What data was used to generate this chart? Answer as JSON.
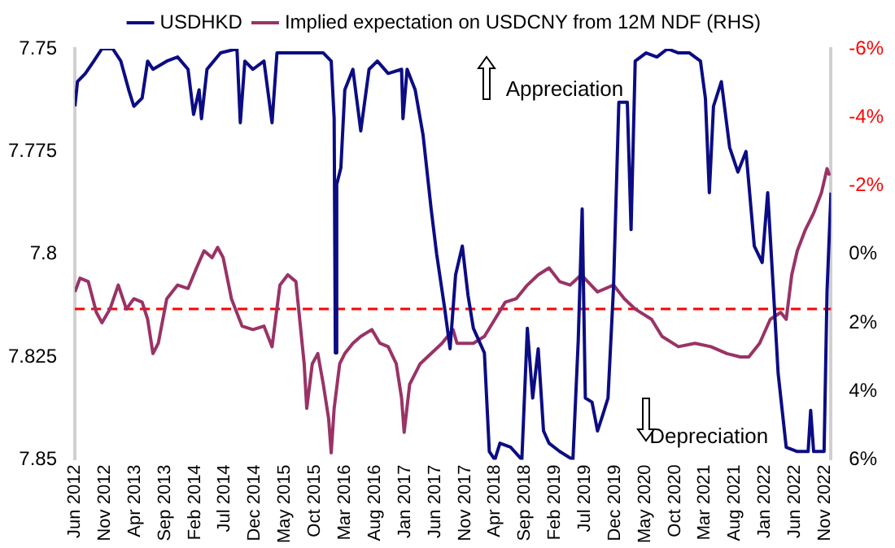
{
  "chart_data": {
    "type": "line",
    "legend": "top",
    "grid": false,
    "marker": "none",
    "line_style": "solid",
    "ylim": [
      7.85,
      7.75
    ],
    "yticks": [
      7.75,
      7.775,
      7.8,
      7.825,
      7.85
    ],
    "y2lim": [
      6,
      -6
    ],
    "y2ticks": [
      {
        "value": -6,
        "label": "-6%"
      },
      {
        "value": -4,
        "label": "-4%"
      },
      {
        "value": -2,
        "label": "-2%"
      },
      {
        "value": 0,
        "label": "0%"
      },
      {
        "value": 2,
        "label": "2%"
      },
      {
        "value": 4,
        "label": "4%"
      },
      {
        "value": 6,
        "label": "6%"
      }
    ],
    "xlim": [
      "2012-06-01",
      "2022-12-01"
    ],
    "xticks": [
      {
        "value": "2012-06-01",
        "label": "Jun 2012"
      },
      {
        "value": "2012-11-01",
        "label": "Nov 2012"
      },
      {
        "value": "2013-04-01",
        "label": "Apr 2013"
      },
      {
        "value": "2013-09-01",
        "label": "Sep 2013"
      },
      {
        "value": "2014-02-01",
        "label": "Feb 2014"
      },
      {
        "value": "2014-07-01",
        "label": "Jul 2014"
      },
      {
        "value": "2014-12-01",
        "label": "Dec 2014"
      },
      {
        "value": "2015-05-01",
        "label": "May 2015"
      },
      {
        "value": "2015-10-01",
        "label": "Oct 2015"
      },
      {
        "value": "2016-03-01",
        "label": "Mar 2016"
      },
      {
        "value": "2016-08-01",
        "label": "Aug 2016"
      },
      {
        "value": "2017-01-01",
        "label": "Jan 2017"
      },
      {
        "value": "2017-06-01",
        "label": "Jun 2017"
      },
      {
        "value": "2017-11-01",
        "label": "Nov 2017"
      },
      {
        "value": "2018-04-01",
        "label": "Apr 2018"
      },
      {
        "value": "2018-09-01",
        "label": "Sep 2018"
      },
      {
        "value": "2019-02-01",
        "label": "Feb 2019"
      },
      {
        "value": "2019-07-01",
        "label": "Jul 2019"
      },
      {
        "value": "2019-12-01",
        "label": "Dec 2019"
      },
      {
        "value": "2020-05-01",
        "label": "May 2020"
      },
      {
        "value": "2020-10-01",
        "label": "Oct 2020"
      },
      {
        "value": "2021-03-01",
        "label": "Mar 2021"
      },
      {
        "value": "2021-08-01",
        "label": "Aug 2021"
      },
      {
        "value": "2022-01-01",
        "label": "Jan 2022"
      },
      {
        "value": "2022-06-01",
        "label": "Jun 2022"
      },
      {
        "value": "2022-11-01",
        "label": "Nov 2022"
      }
    ],
    "ref_lines": [
      {
        "axis": "y2",
        "value": 1.6,
        "color": "#ff0000",
        "line_style": "dashed"
      }
    ],
    "annotations": [
      "Appreciation",
      "Depreciation"
    ],
    "series": [
      {
        "name": "USDHKD",
        "color": "#0c0c84",
        "x": [
          "2012-06-01",
          "2012-06-14",
          "2012-07-24",
          "2012-09-05",
          "2012-10-16",
          "2012-12-10",
          "2013-01-20",
          "2013-03-01",
          "2013-03-27",
          "2013-05-08",
          "2013-06-05",
          "2013-07-02",
          "2013-09-10",
          "2013-11-04",
          "2013-12-27",
          "2014-01-24",
          "2014-02-21",
          "2014-03-05",
          "2014-04-02",
          "2014-06-10",
          "2014-09-01",
          "2014-09-18",
          "2014-10-11",
          "2014-11-21",
          "2015-01-16",
          "2015-02-26",
          "2015-03-23",
          "2015-06-01",
          "2015-08-21",
          "2015-11-13",
          "2015-12-23",
          "2016-01-07",
          "2016-01-13",
          "2016-01-20",
          "2016-02-10",
          "2016-03-01",
          "2016-04-11",
          "2016-05-21",
          "2016-07-02",
          "2016-08-13",
          "2016-10-07",
          "2016-12-14",
          "2016-12-21",
          "2017-01-11",
          "2017-02-21",
          "2017-04-02",
          "2017-05-13",
          "2017-06-10",
          "2017-07-20",
          "2017-08-17",
          "2017-09-14",
          "2017-10-18",
          "2017-11-16",
          "2017-12-13",
          "2018-01-10",
          "2018-02-07",
          "2018-03-04",
          "2018-04-01",
          "2018-04-27",
          "2018-06-21",
          "2018-08-16",
          "2018-09-13",
          "2018-10-10",
          "2018-11-07",
          "2018-12-04",
          "2019-01-01",
          "2019-02-24",
          "2019-05-02",
          "2019-05-29",
          "2019-06-18",
          "2019-07-04",
          "2019-08-07",
          "2019-09-04",
          "2019-10-01",
          "2019-10-27",
          "2019-11-24",
          "2019-12-21",
          "2020-02-02",
          "2020-02-21",
          "2020-03-13",
          "2020-05-07",
          "2020-07-01",
          "2020-08-24",
          "2020-10-18",
          "2020-12-13",
          "2021-02-07",
          "2021-03-04",
          "2021-03-24",
          "2021-04-14",
          "2021-05-24",
          "2021-07-05",
          "2021-08-16",
          "2021-09-26",
          "2021-11-07",
          "2021-12-17",
          "2022-01-14",
          "2022-02-11",
          "2022-03-08",
          "2022-04-18",
          "2022-06-13",
          "2022-08-07",
          "2022-08-20",
          "2022-09-04",
          "2022-10-27",
          "2022-11-11",
          "2022-12-01"
        ],
        "values": [
          7.764,
          7.758,
          7.756,
          7.753,
          7.75,
          7.75,
          7.753,
          7.76,
          7.764,
          7.762,
          7.753,
          7.755,
          7.753,
          7.752,
          7.755,
          7.766,
          7.76,
          7.767,
          7.755,
          7.751,
          7.75,
          7.768,
          7.753,
          7.755,
          7.753,
          7.768,
          7.751,
          7.751,
          7.751,
          7.751,
          7.753,
          7.767,
          7.824,
          7.783,
          7.779,
          7.76,
          7.755,
          7.77,
          7.755,
          7.753,
          7.756,
          7.755,
          7.767,
          7.755,
          7.76,
          7.771,
          7.789,
          7.8,
          7.813,
          7.823,
          7.805,
          7.798,
          7.81,
          7.818,
          7.821,
          7.824,
          7.848,
          7.85,
          7.846,
          7.847,
          7.85,
          7.818,
          7.835,
          7.823,
          7.843,
          7.846,
          7.848,
          7.85,
          7.821,
          7.789,
          7.835,
          7.836,
          7.843,
          7.839,
          7.835,
          7.808,
          7.763,
          7.763,
          7.794,
          7.753,
          7.751,
          7.752,
          7.75,
          7.751,
          7.751,
          7.753,
          7.762,
          7.785,
          7.764,
          7.758,
          7.774,
          7.78,
          7.775,
          7.798,
          7.802,
          7.785,
          7.808,
          7.829,
          7.847,
          7.848,
          7.848,
          7.838,
          7.848,
          7.848,
          7.809,
          7.785
        ]
      },
      {
        "name": "Implied expectation on USDCNY from 12M NDF (RHS)",
        "color": "#993366",
        "axis": "y2",
        "x": [
          "2012-06-01",
          "2012-06-27",
          "2012-08-08",
          "2012-09-18",
          "2012-10-16",
          "2012-11-26",
          "2013-01-07",
          "2013-02-17",
          "2013-03-27",
          "2013-05-08",
          "2013-06-05",
          "2013-07-02",
          "2013-07-29",
          "2013-09-10",
          "2013-11-04",
          "2013-12-27",
          "2014-02-08",
          "2014-03-18",
          "2014-04-28",
          "2014-05-26",
          "2014-06-23",
          "2014-08-04",
          "2014-09-27",
          "2014-11-21",
          "2015-01-16",
          "2015-02-26",
          "2015-04-07",
          "2015-05-17",
          "2015-06-27",
          "2015-08-08",
          "2015-08-21",
          "2015-09-18",
          "2015-10-16",
          "2015-11-13",
          "2015-12-10",
          "2015-12-23",
          "2016-01-07",
          "2016-02-04",
          "2016-03-01",
          "2016-04-11",
          "2016-05-21",
          "2016-07-16",
          "2016-08-26",
          "2016-10-07",
          "2016-11-17",
          "2016-12-14",
          "2016-12-27",
          "2017-01-24",
          "2017-03-18",
          "2017-05-13",
          "2017-07-07",
          "2017-09-01",
          "2017-09-21",
          "2017-12-13",
          "2018-02-07",
          "2018-04-01",
          "2018-05-24",
          "2018-07-18",
          "2018-09-13",
          "2018-11-07",
          "2019-01-01",
          "2019-02-24",
          "2019-04-18",
          "2019-06-13",
          "2019-09-04",
          "2019-11-24",
          "2020-01-18",
          "2020-03-13",
          "2020-06-04",
          "2020-07-27",
          "2020-10-18",
          "2021-01-10",
          "2021-04-01",
          "2021-06-21",
          "2021-08-28",
          "2021-10-10",
          "2021-12-04",
          "2022-01-27",
          "2022-03-21",
          "2022-04-18",
          "2022-05-16",
          "2022-06-13",
          "2022-07-23",
          "2022-09-04",
          "2022-10-14",
          "2022-11-11",
          "2022-11-24"
        ],
        "values": [
          1.1,
          0.7,
          0.8,
          1.7,
          2.0,
          1.6,
          0.9,
          1.6,
          1.3,
          1.4,
          1.9,
          2.9,
          2.6,
          1.3,
          0.9,
          1.0,
          0.4,
          -0.1,
          0.1,
          -0.2,
          0.1,
          1.3,
          2.1,
          2.2,
          2.1,
          2.7,
          0.9,
          0.6,
          0.8,
          3.2,
          4.5,
          3.2,
          2.9,
          3.8,
          4.8,
          5.8,
          4.5,
          3.2,
          2.9,
          2.6,
          2.4,
          2.2,
          2.6,
          2.7,
          3.2,
          4.2,
          5.2,
          3.8,
          3.2,
          2.9,
          2.6,
          2.2,
          2.6,
          2.6,
          2.4,
          1.9,
          1.4,
          1.3,
          0.9,
          0.6,
          0.4,
          0.8,
          0.9,
          0.6,
          1.1,
          0.9,
          1.3,
          1.6,
          1.9,
          2.4,
          2.7,
          2.6,
          2.7,
          2.9,
          3.0,
          3.0,
          2.6,
          1.9,
          1.7,
          1.9,
          0.6,
          -0.1,
          -0.7,
          -1.2,
          -1.8,
          -2.5,
          -2.3
        ]
      }
    ]
  }
}
